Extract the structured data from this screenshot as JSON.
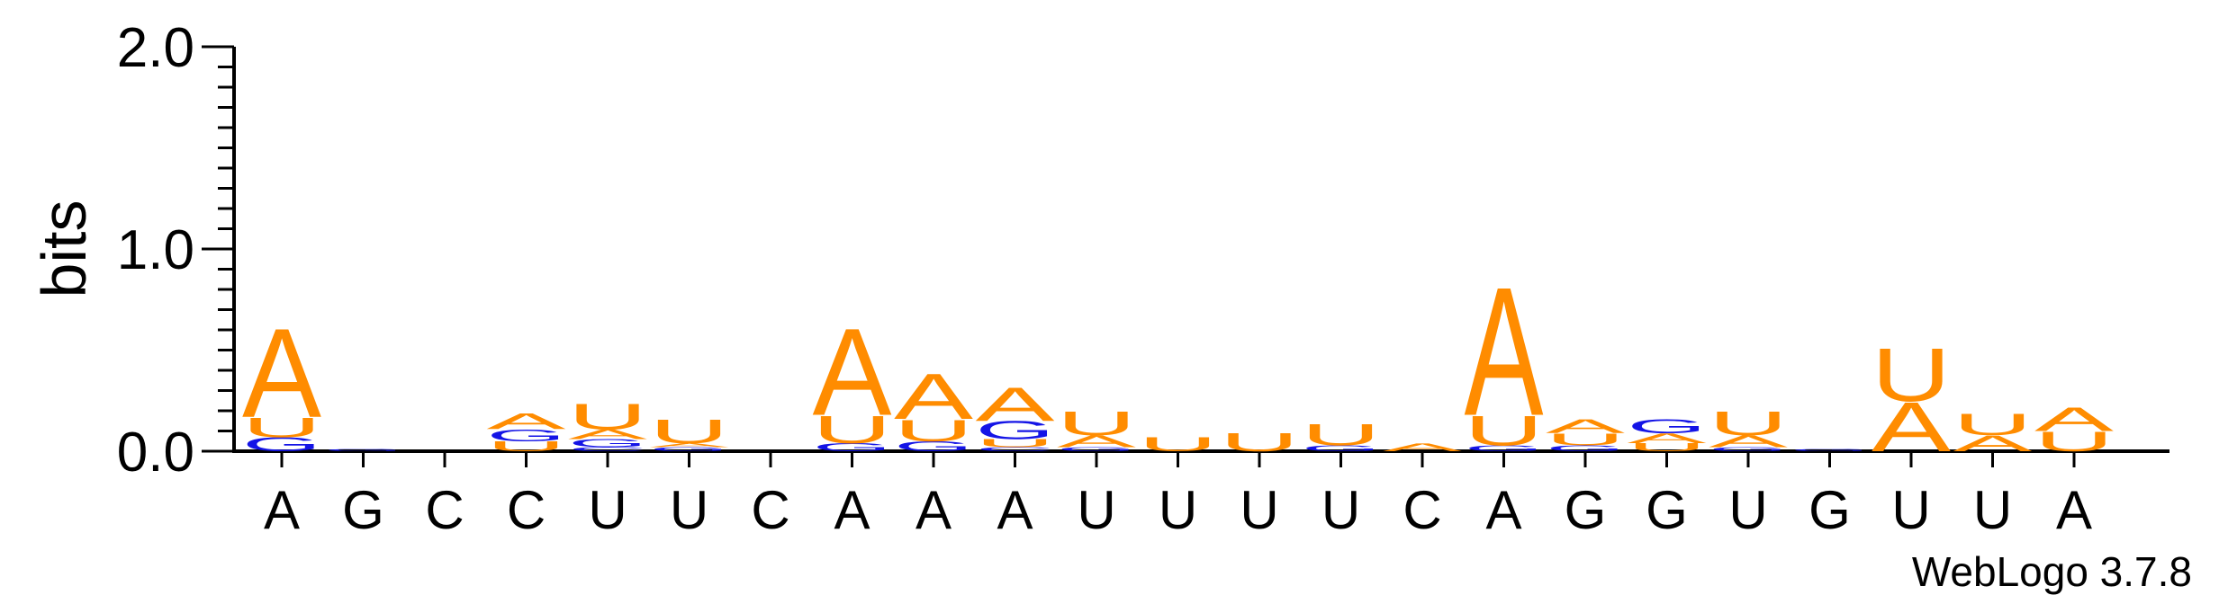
{
  "chart_data": {
    "type": "sequence_logo",
    "ylabel": "bits",
    "ylim": [
      0,
      2.0
    ],
    "yticks": [
      0.0,
      1.0,
      2.0
    ],
    "ytick_labels": [
      "0.0",
      "1.0",
      "2.0"
    ],
    "footer": "WebLogo 3.7.8",
    "colors": {
      "A": "#ff8c00",
      "U": "#ff8c00",
      "G": "#1414e6",
      "C": "#1414e6"
    },
    "positions": [
      {
        "label": "A",
        "stack": [
          {
            "l": "G",
            "h": 0.07
          },
          {
            "l": "U",
            "h": 0.1
          },
          {
            "l": "A",
            "h": 0.45
          }
        ]
      },
      {
        "label": "G",
        "stack": [
          {
            "l": "G",
            "h": 0.01
          }
        ]
      },
      {
        "label": "C",
        "stack": []
      },
      {
        "label": "C",
        "stack": [
          {
            "l": "U",
            "h": 0.05
          },
          {
            "l": "G",
            "h": 0.06
          },
          {
            "l": "A",
            "h": 0.08
          }
        ]
      },
      {
        "label": "U",
        "stack": [
          {
            "l": "C",
            "h": 0.02
          },
          {
            "l": "G",
            "h": 0.04
          },
          {
            "l": "A",
            "h": 0.05
          },
          {
            "l": "U",
            "h": 0.13
          }
        ]
      },
      {
        "label": "U",
        "stack": [
          {
            "l": "G",
            "h": 0.02
          },
          {
            "l": "A",
            "h": 0.02
          },
          {
            "l": "U",
            "h": 0.12
          }
        ]
      },
      {
        "label": "C",
        "stack": []
      },
      {
        "label": "A",
        "stack": [
          {
            "l": "G",
            "h": 0.04
          },
          {
            "l": "U",
            "h": 0.14
          },
          {
            "l": "A",
            "h": 0.44
          }
        ]
      },
      {
        "label": "A",
        "stack": [
          {
            "l": "G",
            "h": 0.05
          },
          {
            "l": "U",
            "h": 0.11
          },
          {
            "l": "A",
            "h": 0.23
          }
        ]
      },
      {
        "label": "A",
        "stack": [
          {
            "l": "C",
            "h": 0.02
          },
          {
            "l": "U",
            "h": 0.04
          },
          {
            "l": "G",
            "h": 0.09
          },
          {
            "l": "A",
            "h": 0.17
          }
        ]
      },
      {
        "label": "U",
        "stack": [
          {
            "l": "G",
            "h": 0.02
          },
          {
            "l": "A",
            "h": 0.06
          },
          {
            "l": "U",
            "h": 0.12
          }
        ]
      },
      {
        "label": "U",
        "stack": [
          {
            "l": "U",
            "h": 0.07
          }
        ]
      },
      {
        "label": "U",
        "stack": [
          {
            "l": "U",
            "h": 0.09
          }
        ]
      },
      {
        "label": "U",
        "stack": [
          {
            "l": "G",
            "h": 0.03
          },
          {
            "l": "U",
            "h": 0.11
          }
        ]
      },
      {
        "label": "C",
        "stack": [
          {
            "l": "A",
            "h": 0.04
          }
        ]
      },
      {
        "label": "A",
        "stack": [
          {
            "l": "G",
            "h": 0.03
          },
          {
            "l": "U",
            "h": 0.15
          },
          {
            "l": "A",
            "h": 0.65
          }
        ]
      },
      {
        "label": "G",
        "stack": [
          {
            "l": "G",
            "h": 0.03
          },
          {
            "l": "U",
            "h": 0.06
          },
          {
            "l": "A",
            "h": 0.07
          }
        ]
      },
      {
        "label": "G",
        "stack": [
          {
            "l": "U",
            "h": 0.04
          },
          {
            "l": "A",
            "h": 0.05
          },
          {
            "l": "G",
            "h": 0.07
          }
        ]
      },
      {
        "label": "U",
        "stack": [
          {
            "l": "G",
            "h": 0.02
          },
          {
            "l": "A",
            "h": 0.06
          },
          {
            "l": "U",
            "h": 0.12
          }
        ]
      },
      {
        "label": "G",
        "stack": [
          {
            "l": "G",
            "h": 0.01
          }
        ]
      },
      {
        "label": "U",
        "stack": [
          {
            "l": "A",
            "h": 0.25
          },
          {
            "l": "U",
            "h": 0.27
          }
        ]
      },
      {
        "label": "U",
        "stack": [
          {
            "l": "A",
            "h": 0.08
          },
          {
            "l": "U",
            "h": 0.11
          }
        ]
      },
      {
        "label": "A",
        "stack": [
          {
            "l": "U",
            "h": 0.1
          },
          {
            "l": "A",
            "h": 0.12
          }
        ]
      }
    ]
  }
}
